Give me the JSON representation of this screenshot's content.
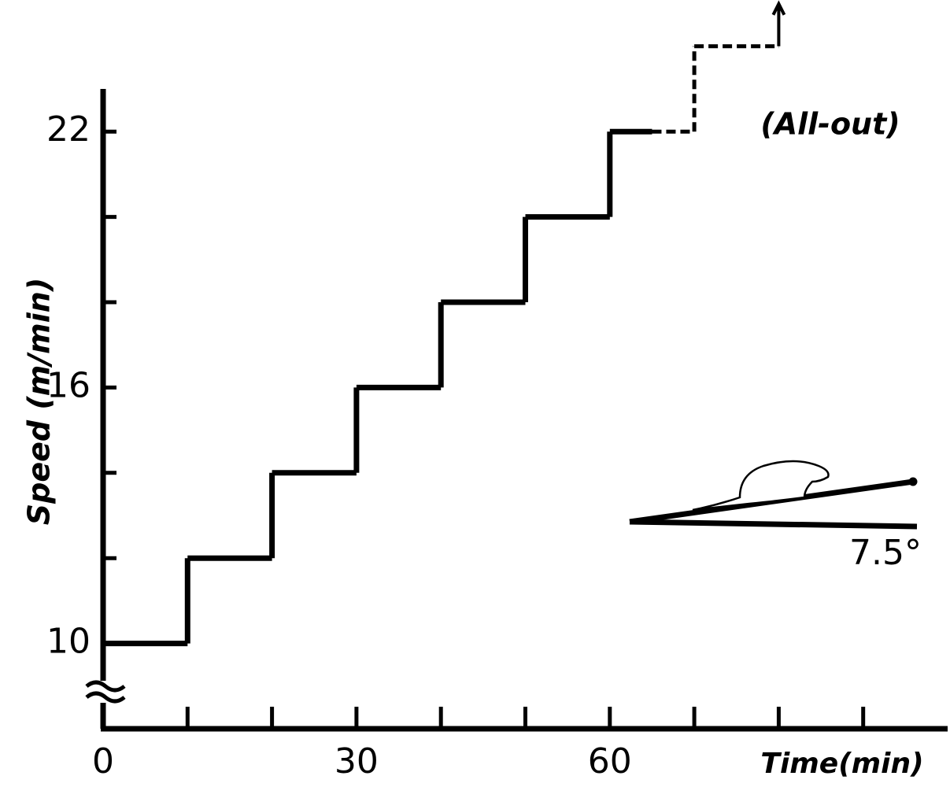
{
  "chart_data": {
    "type": "step",
    "xlabel": "Time(min)",
    "ylabel": "Speed (m/min)",
    "annotations": [
      "(All-out)",
      "7.5°"
    ],
    "xlim": [
      0,
      100
    ],
    "ylim": [
      8,
      23
    ],
    "xticks": [
      0,
      30,
      60
    ],
    "xminorticks": [
      10,
      20,
      40,
      50,
      70,
      80,
      90
    ],
    "yticks": [
      10,
      16,
      22
    ],
    "yminorticks": [
      12,
      14,
      18,
      20
    ],
    "series": [
      {
        "x": [
          0,
          10,
          20,
          30,
          40,
          50,
          60,
          65
        ],
        "values": [
          10,
          12,
          14,
          16,
          18,
          20,
          22,
          22
        ],
        "color": "#000000",
        "linestyle": "solid"
      },
      {
        "x": [
          65,
          70,
          80
        ],
        "values": [
          22,
          24,
          24
        ],
        "color": "#000000",
        "linestyle": "dashed"
      }
    ]
  }
}
